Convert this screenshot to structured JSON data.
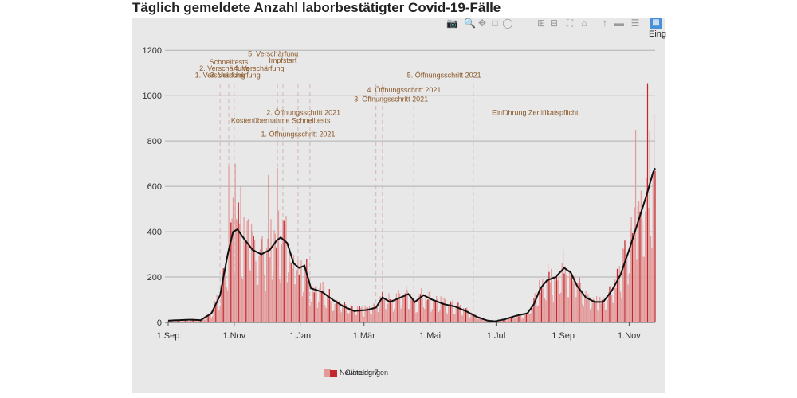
{
  "page": {
    "title": "Täglich gemeldete Anzahl laborbestätigter Covid-19-Fälle"
  },
  "toolbar": {
    "items": [
      "camera-icon",
      "zoom-icon",
      "pan-icon",
      "box-select-icon",
      "lasso-icon",
      "zoom-in-icon",
      "zoom-out-icon",
      "autoscale-icon",
      "home-icon",
      "spike-icon",
      "hover-closest-icon",
      "hover-compare-icon"
    ],
    "active_label": "Eing"
  },
  "colors": {
    "bar_light": "#e39a9a",
    "bar_dark": "#c1272d",
    "line": "#111111",
    "annotation": "#8b5a2b",
    "grid": "#b0b0b0",
    "dashed": "#d8b4b4"
  },
  "legend": {
    "label_1": "Neumeldungen",
    "label_2": "Glättung 7"
  },
  "chart_data": {
    "type": "bar",
    "title": "Täglich gemeldete Anzahl laborbestätigter Covid-19-Fälle",
    "xlabel": "",
    "ylabel": "",
    "ylim": [
      0,
      1250
    ],
    "yticks": [
      0,
      200,
      400,
      600,
      800,
      1000,
      1200
    ],
    "x_range_days": [
      0,
      450
    ],
    "xticks": [
      {
        "day": 0,
        "label": "1.Sep"
      },
      {
        "day": 61,
        "label": "1.Nov"
      },
      {
        "day": 122,
        "label": "1.Jan"
      },
      {
        "day": 181,
        "label": "1.Mär"
      },
      {
        "day": 242,
        "label": "1.Mai"
      },
      {
        "day": 303,
        "label": "1.Jul"
      },
      {
        "day": 365,
        "label": "1.Sep"
      },
      {
        "day": 426,
        "label": "1.Nov"
      }
    ],
    "smoothing_keypoints": [
      {
        "day": 0,
        "value": 8
      },
      {
        "day": 20,
        "value": 12
      },
      {
        "day": 30,
        "value": 10
      },
      {
        "day": 40,
        "value": 40
      },
      {
        "day": 48,
        "value": 120
      },
      {
        "day": 55,
        "value": 300
      },
      {
        "day": 60,
        "value": 400
      },
      {
        "day": 64,
        "value": 410
      },
      {
        "day": 70,
        "value": 370
      },
      {
        "day": 78,
        "value": 320
      },
      {
        "day": 86,
        "value": 300
      },
      {
        "day": 94,
        "value": 320
      },
      {
        "day": 100,
        "value": 360
      },
      {
        "day": 104,
        "value": 375
      },
      {
        "day": 110,
        "value": 350
      },
      {
        "day": 116,
        "value": 260
      },
      {
        "day": 121,
        "value": 240
      },
      {
        "day": 126,
        "value": 250
      },
      {
        "day": 132,
        "value": 150
      },
      {
        "day": 142,
        "value": 135
      },
      {
        "day": 152,
        "value": 100
      },
      {
        "day": 162,
        "value": 70
      },
      {
        "day": 172,
        "value": 50
      },
      {
        "day": 184,
        "value": 55
      },
      {
        "day": 192,
        "value": 65
      },
      {
        "day": 198,
        "value": 110
      },
      {
        "day": 205,
        "value": 90
      },
      {
        "day": 215,
        "value": 110
      },
      {
        "day": 222,
        "value": 125
      },
      {
        "day": 228,
        "value": 90
      },
      {
        "day": 236,
        "value": 120
      },
      {
        "day": 244,
        "value": 100
      },
      {
        "day": 255,
        "value": 80
      },
      {
        "day": 265,
        "value": 70
      },
      {
        "day": 275,
        "value": 50
      },
      {
        "day": 285,
        "value": 25
      },
      {
        "day": 295,
        "value": 8
      },
      {
        "day": 302,
        "value": 5
      },
      {
        "day": 312,
        "value": 15
      },
      {
        "day": 322,
        "value": 30
      },
      {
        "day": 332,
        "value": 40
      },
      {
        "day": 338,
        "value": 80
      },
      {
        "day": 344,
        "value": 150
      },
      {
        "day": 350,
        "value": 185
      },
      {
        "day": 358,
        "value": 200
      },
      {
        "day": 366,
        "value": 240
      },
      {
        "day": 372,
        "value": 220
      },
      {
        "day": 378,
        "value": 160
      },
      {
        "day": 386,
        "value": 110
      },
      {
        "day": 394,
        "value": 90
      },
      {
        "day": 402,
        "value": 90
      },
      {
        "day": 410,
        "value": 140
      },
      {
        "day": 418,
        "value": 210
      },
      {
        "day": 426,
        "value": 320
      },
      {
        "day": 434,
        "value": 440
      },
      {
        "day": 442,
        "value": 560
      },
      {
        "day": 448,
        "value": 660
      },
      {
        "day": 450,
        "value": 680
      }
    ],
    "series": [
      {
        "name": "Neumeldungen",
        "type": "bar",
        "color": "#e39a9a"
      },
      {
        "name": "Glättung 7",
        "type": "line",
        "color": "#111111"
      }
    ],
    "notable_peaks": [
      {
        "day": 56,
        "value": 690
      },
      {
        "day": 62,
        "value": 700
      },
      {
        "day": 67,
        "value": 600
      },
      {
        "day": 93,
        "value": 650
      },
      {
        "day": 101,
        "value": 680
      },
      {
        "day": 432,
        "value": 850
      },
      {
        "day": 443,
        "value": 1055
      }
    ],
    "annotations": [
      {
        "day": 48,
        "label": "1. Verschärfung",
        "value": 1080
      },
      {
        "day": 52,
        "label": "2. Verschärfung",
        "value": 1110
      },
      {
        "day": 56,
        "label": "Schnelltests",
        "value": 1138
      },
      {
        "day": 84,
        "label": "4. Verschärfung",
        "value": 1110
      },
      {
        "day": 62,
        "label": "3. Verschärfung",
        "value": 1080
      },
      {
        "day": 97,
        "label": "5. Verschärfung",
        "value": 1175
      },
      {
        "day": 106,
        "label": "Impfstart",
        "value": 1145
      },
      {
        "day": 104,
        "label": "Kostenübernahme Schnelltests",
        "value": 880
      },
      {
        "day": 125,
        "label": "2. Öffnungsschritt 2021",
        "value": 915
      },
      {
        "day": 120,
        "label": "1. Öffnungsschritt 2021",
        "value": 820
      },
      {
        "day": 206,
        "label": "3. Öffnungsschritt 2021",
        "value": 975
      },
      {
        "day": 218,
        "label": "4. Öffnungsschritt 2021",
        "value": 1015
      },
      {
        "day": 255,
        "label": "5. Öffnungsschritt 2021",
        "value": 1080
      },
      {
        "day": 339,
        "label": "Einführung Zertifikatspflicht",
        "value": 915
      }
    ],
    "annotation_lines_days": [
      48,
      56,
      61,
      101,
      106,
      120,
      131,
      192,
      198,
      227,
      253,
      282,
      376
    ]
  }
}
